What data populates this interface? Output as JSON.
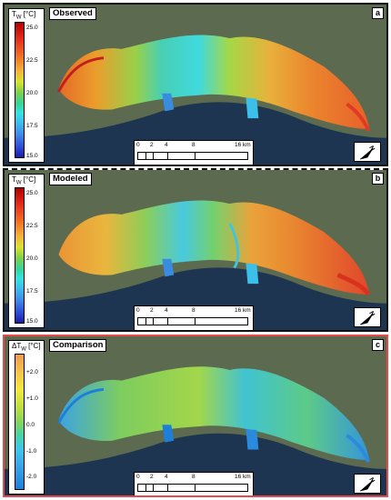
{
  "colors": {
    "highlight_frame": "#e8494a",
    "water": "#1d3550",
    "land": "#5c6a4f"
  },
  "panels": [
    {
      "id": "a",
      "title": "Observed",
      "letter": "a",
      "legend_title_main": "T",
      "legend_title_sub": "W",
      "legend_title_unit": " [°C]",
      "legend_ticks": [
        "25.0",
        "22.5",
        "20.0",
        "17.5",
        "15.0"
      ],
      "scale_labels": [
        "0",
        "2",
        "4",
        "8",
        "16 km"
      ],
      "north_label": "N",
      "north_icon": "north-arrow-icon"
    },
    {
      "id": "b",
      "title": "Modeled",
      "letter": "b",
      "legend_title_main": "T",
      "legend_title_sub": "W",
      "legend_title_unit": " [°C]",
      "legend_ticks": [
        "25.0",
        "22.5",
        "20.0",
        "17.5",
        "15.0"
      ],
      "scale_labels": [
        "0",
        "2",
        "4",
        "8",
        "16 km"
      ],
      "north_label": "N",
      "north_icon": "north-arrow-icon"
    },
    {
      "id": "c",
      "title": "Comparison",
      "letter": "c",
      "legend_title_main": "ΔT",
      "legend_title_sub": "W",
      "legend_title_unit": " [°C]",
      "legend_ticks": [
        "+2.0",
        "+1.0",
        "0.0",
        "-1.0",
        "-2.0"
      ],
      "scale_labels": [
        "0",
        "2",
        "4",
        "8",
        "16 km"
      ],
      "north_label": "N",
      "north_icon": "north-arrow-icon"
    }
  ]
}
